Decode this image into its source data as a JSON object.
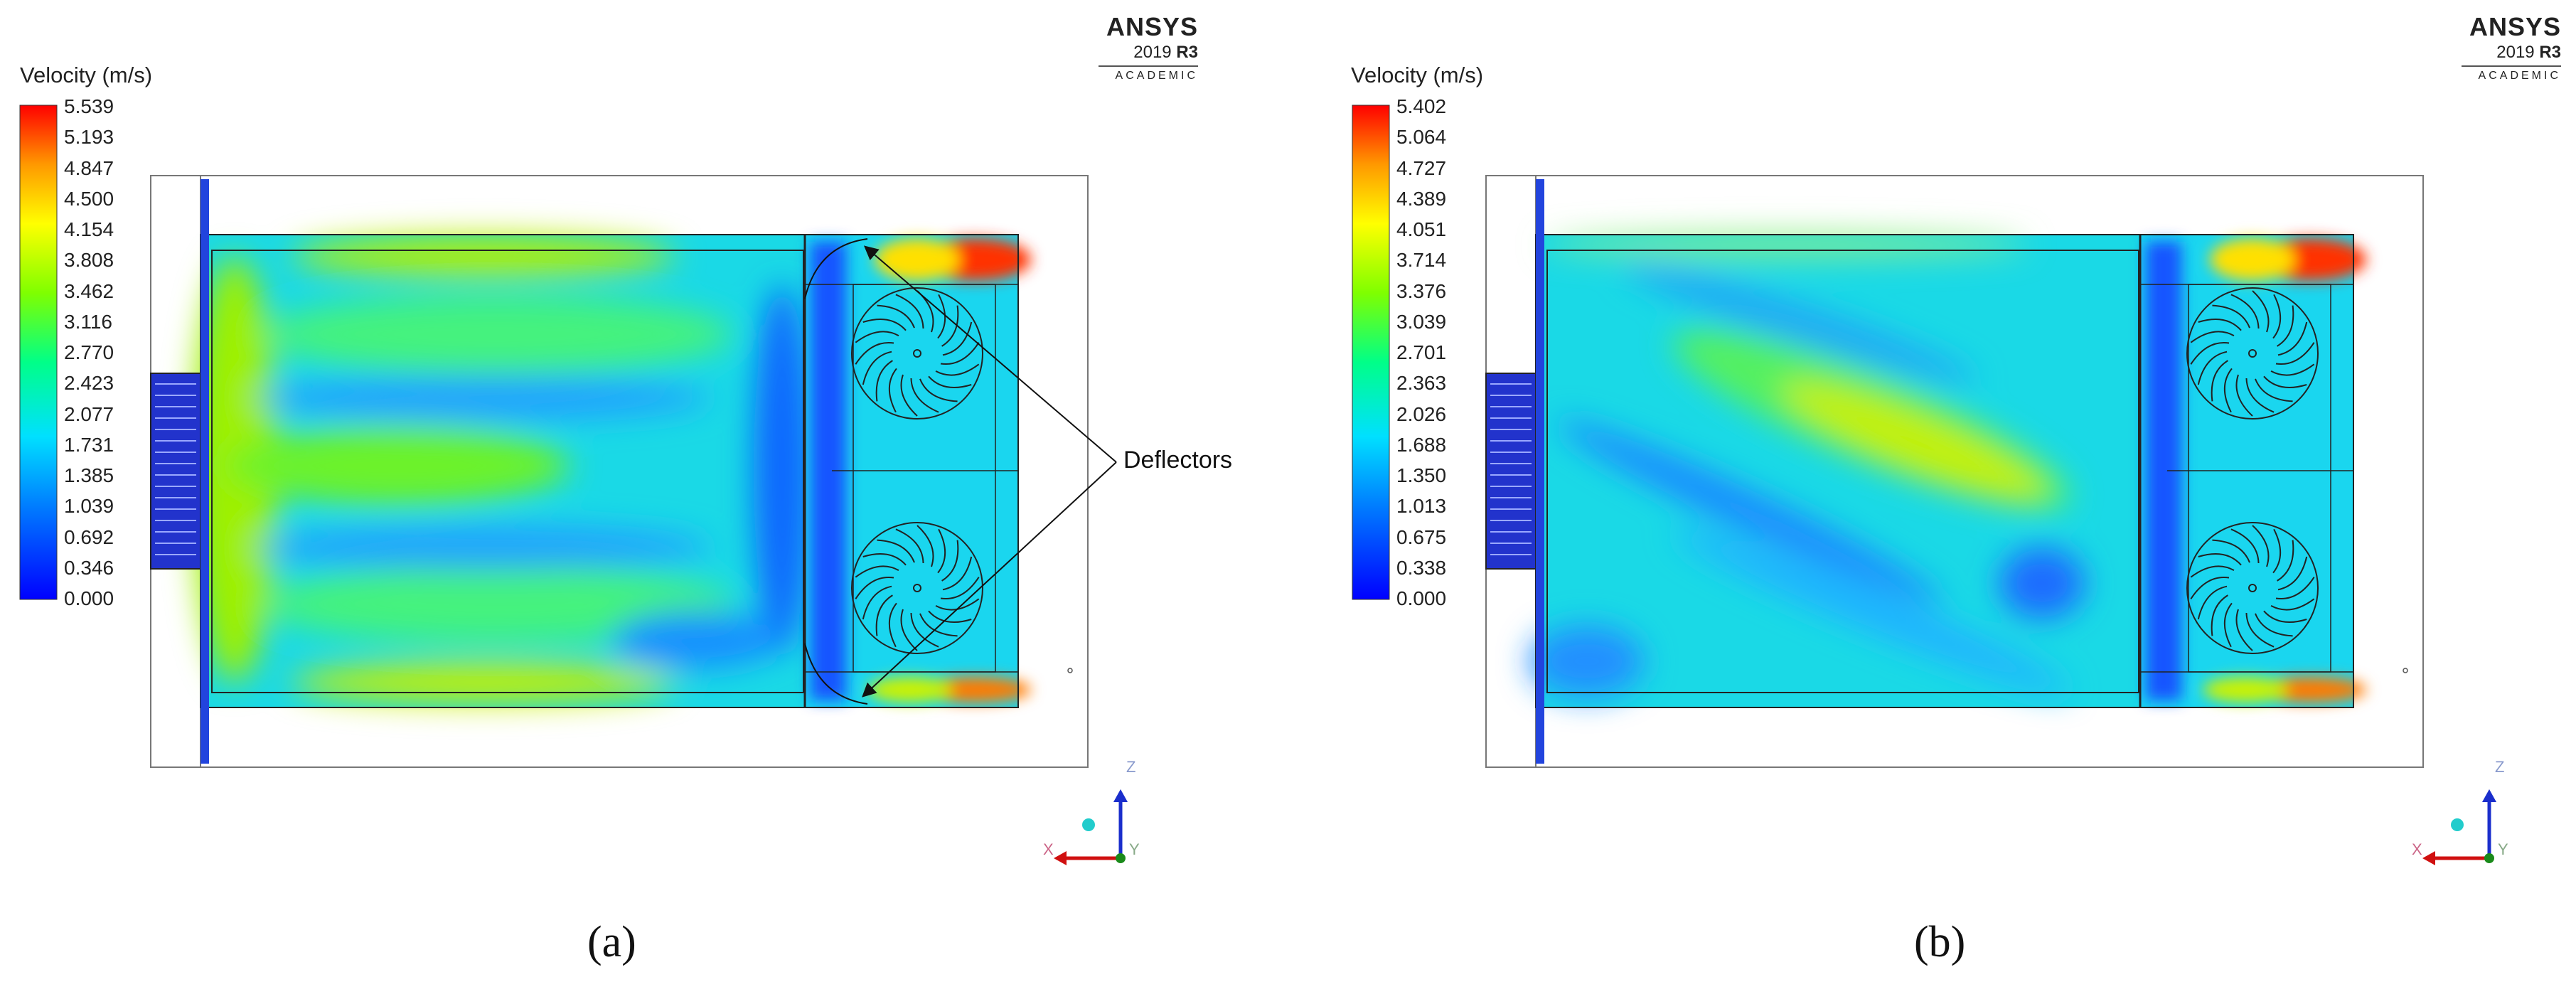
{
  "panels": [
    {
      "id": "a",
      "legend": {
        "title": "Velocity (m/s)",
        "ticks": [
          "5.539",
          "5.193",
          "4.847",
          "4.500",
          "4.154",
          "3.808",
          "3.462",
          "3.116",
          "2.770",
          "2.423",
          "2.077",
          "1.731",
          "1.385",
          "1.039",
          "0.692",
          "0.346",
          "0.000"
        ]
      },
      "logo": {
        "brand": "ANSYS",
        "version": "2019",
        "release": "R3",
        "edition": "ACADEMIC"
      },
      "callout": "Deflectors",
      "axes": {
        "z": "Z",
        "x": "X",
        "y": "Y"
      },
      "label": "(a)"
    },
    {
      "id": "b",
      "legend": {
        "title": "Velocity (m/s)",
        "ticks": [
          "5.402",
          "5.064",
          "4.727",
          "4.389",
          "4.051",
          "3.714",
          "3.376",
          "3.039",
          "2.701",
          "2.363",
          "2.026",
          "1.688",
          "1.350",
          "1.013",
          "0.675",
          "0.338",
          "0.000"
        ]
      },
      "logo": {
        "brand": "ANSYS",
        "version": "2019",
        "release": "R3",
        "edition": "ACADEMIC"
      },
      "axes": {
        "z": "Z",
        "x": "X",
        "y": "Y"
      },
      "label": "(b)"
    }
  ]
}
